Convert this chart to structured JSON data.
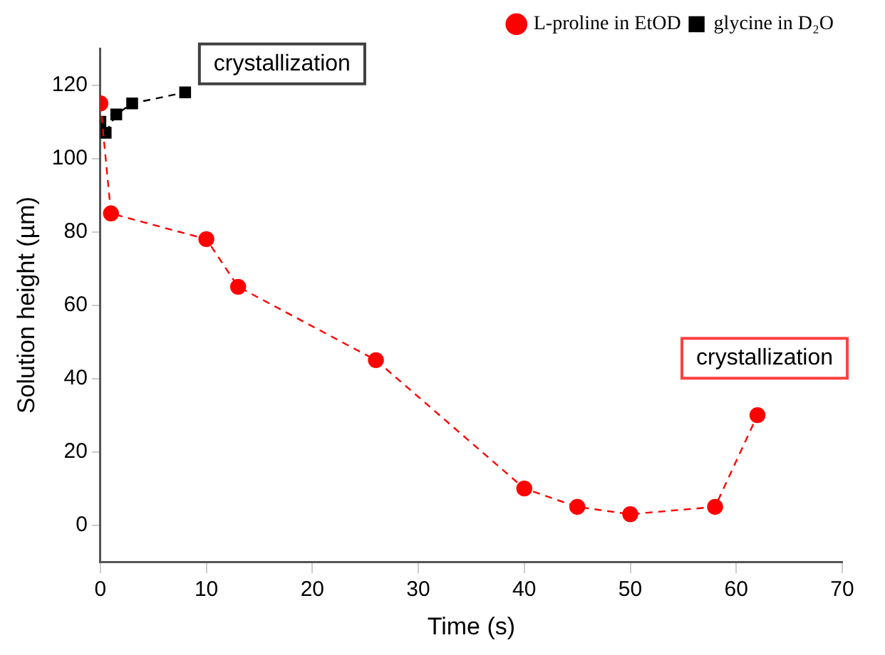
{
  "chart_data": {
    "type": "line",
    "xlabel": "Time (s)",
    "ylabel": "Solution height (µm)",
    "xlim": [
      0,
      70
    ],
    "xticks": [
      0,
      10,
      20,
      30,
      40,
      50,
      60,
      70
    ],
    "ylim": [
      -10,
      130
    ],
    "yticks": [
      0,
      20,
      40,
      60,
      80,
      100,
      120
    ],
    "grid": false,
    "legend": "top right",
    "line_style": "dashed",
    "series": [
      {
        "name": "L-proline in EtOD",
        "color": "#ff0000",
        "marker": "circle",
        "x": [
          0,
          1,
          10,
          13,
          26,
          40,
          45,
          50,
          58,
          62
        ],
        "values": [
          115,
          85,
          78,
          65,
          45,
          10,
          5,
          3,
          5,
          30
        ]
      },
      {
        "name": "glycine in D₂O",
        "color": "#000000",
        "marker": "square",
        "x": [
          0,
          0.5,
          1.5,
          3,
          8
        ],
        "values": [
          110,
          107,
          112,
          115,
          118
        ]
      }
    ],
    "annotations": [
      "crystallization",
      "crystallization"
    ]
  }
}
